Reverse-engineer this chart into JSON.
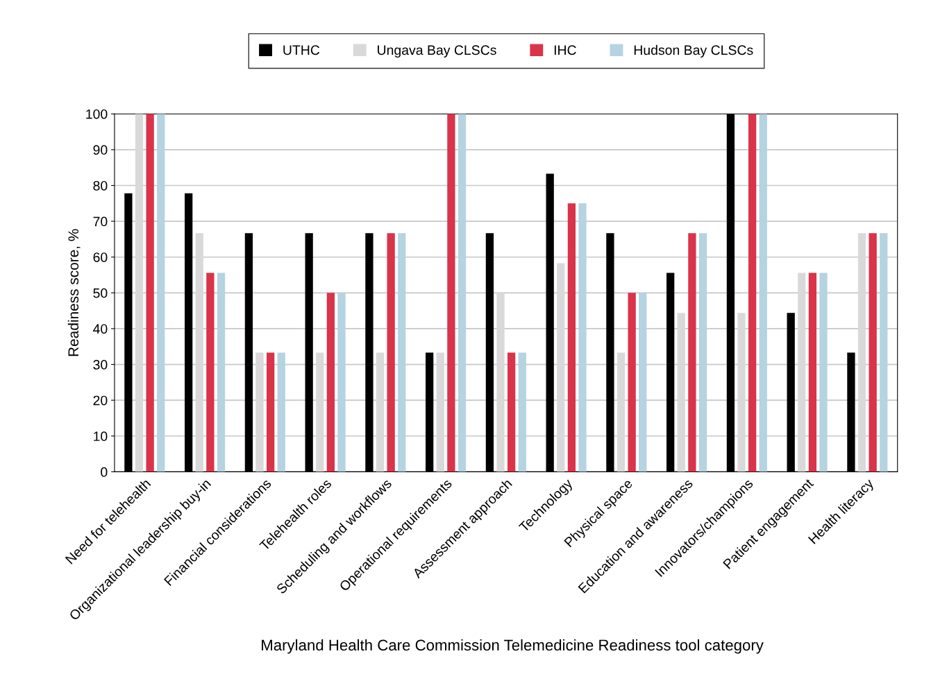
{
  "chart_data": {
    "type": "bar",
    "xlabel": "Maryland Health Care Commission Telemedicine Readiness tool category",
    "ylabel": "Readiness score, %",
    "categories": [
      "Need for telehealth",
      "Organizational leadership buy-in",
      "Financial considerations",
      "Telehealth roles",
      "Scheduling and workflows",
      "Operational requirements",
      "Assessment approach",
      "Technology",
      "Physical space",
      "Education and awareness",
      "Innovators/champions",
      "Patient engagement",
      "Health literacy"
    ],
    "series": [
      {
        "name": "UTHC",
        "color": "#000000",
        "values": [
          77.8,
          77.8,
          66.7,
          66.7,
          66.7,
          33.3,
          66.7,
          83.3,
          66.7,
          55.6,
          100,
          44.4,
          33.3
        ]
      },
      {
        "name": "Ungava Bay CLSCs",
        "color": "#d9d9d9",
        "values": [
          100,
          66.7,
          33.3,
          33.3,
          33.3,
          33.3,
          50,
          58.3,
          33.3,
          44.4,
          44.4,
          55.6,
          66.7
        ]
      },
      {
        "name": "IHC",
        "color": "#d9344a",
        "values": [
          100,
          55.6,
          33.3,
          50,
          66.7,
          100,
          33.3,
          75,
          50,
          66.7,
          100,
          55.6,
          66.7
        ]
      },
      {
        "name": "Hudson Bay CLSCs",
        "color": "#b5d3e0",
        "values": [
          100,
          55.6,
          33.3,
          50,
          66.7,
          100,
          33.3,
          75,
          50,
          66.7,
          100,
          55.6,
          66.7
        ]
      }
    ],
    "ylim": [
      0,
      100
    ],
    "yticks": [
      0,
      10,
      20,
      30,
      40,
      50,
      60,
      70,
      80,
      90,
      100
    ],
    "grid": "y",
    "legend": "top"
  }
}
